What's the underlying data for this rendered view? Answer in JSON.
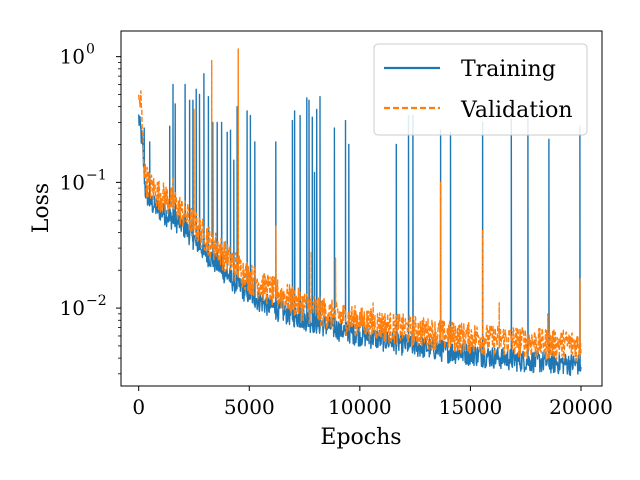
{
  "chart_data": {
    "type": "line",
    "title": "",
    "xlabel": "Epochs",
    "ylabel": "Loss",
    "xlim": [
      -800,
      20950
    ],
    "ylim": [
      0.0024,
      1.6
    ],
    "yscale": "log",
    "x_ticks": [
      0,
      5000,
      10000,
      15000,
      20000
    ],
    "x_tick_labels": [
      "0",
      "5000",
      "10000",
      "15000",
      "20000"
    ],
    "y_ticks": [
      0.01,
      0.1,
      1
    ],
    "y_tick_labels": [
      "10",
      "10",
      "10"
    ],
    "y_tick_exponents": [
      "−2",
      "−1",
      "0"
    ],
    "legend_position": "top-right",
    "series": [
      {
        "name": "Training",
        "color": "#1f77b4",
        "style": "solid",
        "x": [
          0,
          150,
          300,
          500,
          800,
          1200,
          1600,
          2000,
          2500,
          3000,
          3500,
          4000,
          4500,
          5000,
          5500,
          6000,
          6500,
          7000,
          7500,
          8000,
          9000,
          10000,
          11000,
          12000,
          13000,
          14000,
          15000,
          16000,
          17000,
          18000,
          19000,
          20000
        ],
        "values": [
          0.3,
          0.2,
          0.08,
          0.065,
          0.058,
          0.052,
          0.047,
          0.042,
          0.033,
          0.026,
          0.021,
          0.017,
          0.014,
          0.012,
          0.0105,
          0.0095,
          0.0087,
          0.0081,
          0.0076,
          0.0071,
          0.0063,
          0.0057,
          0.0052,
          0.0048,
          0.0045,
          0.0042,
          0.004,
          0.0038,
          0.0036,
          0.0035,
          0.0034,
          0.0033
        ],
        "spikes": [
          {
            "x": 250,
            "y": 0.27
          },
          {
            "x": 500,
            "y": 0.21
          },
          {
            "x": 1400,
            "y": 0.28
          },
          {
            "x": 1550,
            "y": 0.6
          },
          {
            "x": 1650,
            "y": 0.42
          },
          {
            "x": 2100,
            "y": 0.6
          },
          {
            "x": 2300,
            "y": 0.45
          },
          {
            "x": 2450,
            "y": 0.45
          },
          {
            "x": 2600,
            "y": 0.55
          },
          {
            "x": 2750,
            "y": 0.5
          },
          {
            "x": 2950,
            "y": 0.73
          },
          {
            "x": 3150,
            "y": 0.48
          },
          {
            "x": 3350,
            "y": 0.3
          },
          {
            "x": 3550,
            "y": 0.3
          },
          {
            "x": 3750,
            "y": 0.3
          },
          {
            "x": 4000,
            "y": 0.25
          },
          {
            "x": 4150,
            "y": 0.26
          },
          {
            "x": 4300,
            "y": 0.15
          },
          {
            "x": 4450,
            "y": 0.4
          },
          {
            "x": 4900,
            "y": 0.37
          },
          {
            "x": 5050,
            "y": 0.34
          },
          {
            "x": 5250,
            "y": 0.21
          },
          {
            "x": 6200,
            "y": 0.21
          },
          {
            "x": 6950,
            "y": 0.31
          },
          {
            "x": 7050,
            "y": 0.37
          },
          {
            "x": 7300,
            "y": 0.34
          },
          {
            "x": 7600,
            "y": 0.47
          },
          {
            "x": 7700,
            "y": 0.45
          },
          {
            "x": 7850,
            "y": 0.33
          },
          {
            "x": 7950,
            "y": 0.12
          },
          {
            "x": 8050,
            "y": 0.38
          },
          {
            "x": 8200,
            "y": 0.48
          },
          {
            "x": 8850,
            "y": 0.27
          },
          {
            "x": 9350,
            "y": 0.31
          },
          {
            "x": 9500,
            "y": 0.2
          },
          {
            "x": 11650,
            "y": 0.2
          },
          {
            "x": 12200,
            "y": 0.34
          },
          {
            "x": 12400,
            "y": 0.34
          },
          {
            "x": 13650,
            "y": 0.26
          },
          {
            "x": 14100,
            "y": 0.25
          },
          {
            "x": 15550,
            "y": 0.3
          },
          {
            "x": 16850,
            "y": 0.32
          },
          {
            "x": 17600,
            "y": 0.33
          },
          {
            "x": 18550,
            "y": 0.22
          },
          {
            "x": 19950,
            "y": 0.28
          }
        ]
      },
      {
        "name": "Validation",
        "color": "#ff7f0e",
        "style": "dashed",
        "x": [
          0,
          100,
          200,
          300,
          500,
          800,
          1200,
          1600,
          2000,
          2500,
          3000,
          3500,
          4000,
          4500,
          5000,
          5500,
          6000,
          6500,
          7000,
          7500,
          8000,
          9000,
          10000,
          11000,
          12000,
          13000,
          14000,
          15000,
          16000,
          17000,
          18000,
          19000,
          20000
        ],
        "values": [
          0.38,
          0.4,
          0.17,
          0.1,
          0.085,
          0.075,
          0.068,
          0.062,
          0.052,
          0.042,
          0.034,
          0.028,
          0.023,
          0.019,
          0.016,
          0.014,
          0.0125,
          0.0113,
          0.0103,
          0.0095,
          0.0088,
          0.0078,
          0.0071,
          0.0066,
          0.0062,
          0.0058,
          0.0055,
          0.0053,
          0.0051,
          0.005,
          0.0048,
          0.0047,
          0.0046
        ],
        "spikes": [
          {
            "x": 1550,
            "y": 0.11
          },
          {
            "x": 2500,
            "y": 0.38
          },
          {
            "x": 3300,
            "y": 0.93
          },
          {
            "x": 4500,
            "y": 1.15
          },
          {
            "x": 6200,
            "y": 0.045
          },
          {
            "x": 7800,
            "y": 0.028
          },
          {
            "x": 8900,
            "y": 0.025
          },
          {
            "x": 10600,
            "y": 0.011
          },
          {
            "x": 13650,
            "y": 0.1
          },
          {
            "x": 15550,
            "y": 0.042
          },
          {
            "x": 16300,
            "y": 0.011
          },
          {
            "x": 18500,
            "y": 0.009
          },
          {
            "x": 19950,
            "y": 0.017
          }
        ]
      }
    ]
  }
}
